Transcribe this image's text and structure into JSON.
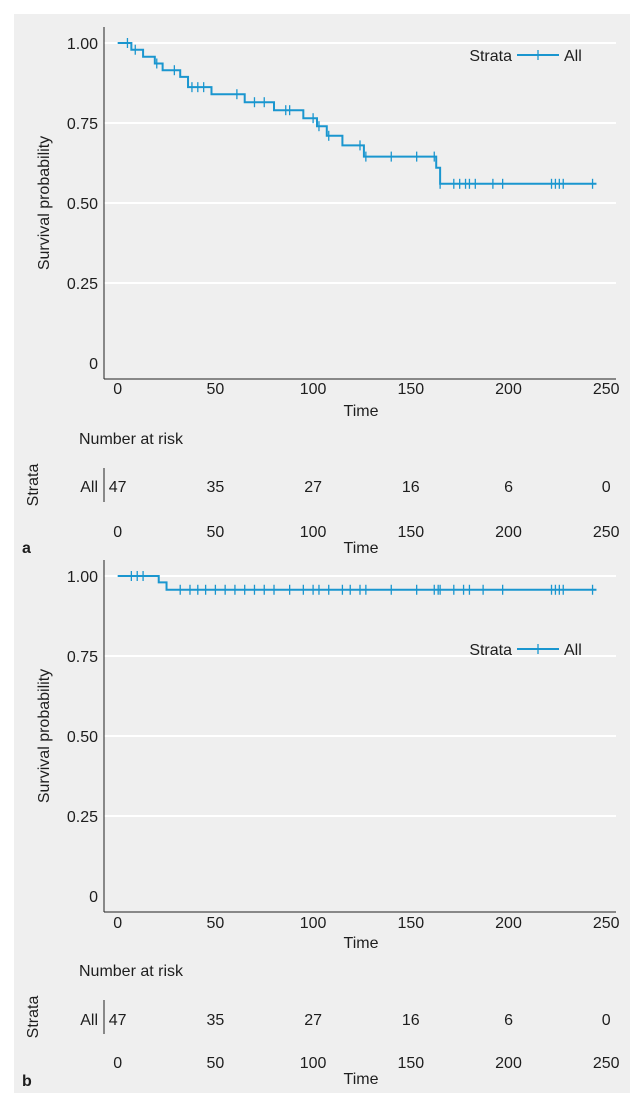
{
  "colors": {
    "series": "#1a96cf",
    "axis": "#222222",
    "grid": "#ffffff",
    "panel": "#efefef"
  },
  "chart_data": [
    {
      "panel_label": "a",
      "type": "line",
      "step": true,
      "ylabel": "Survival probability",
      "xlabel": "Time",
      "xlim": [
        -7,
        255
      ],
      "ylim": [
        -0.05,
        1.05
      ],
      "xticks": [
        "0",
        "50",
        "100",
        "150",
        "200",
        "250"
      ],
      "yticks": [
        "0",
        "0.25",
        "0.50",
        "0.75",
        "1.00"
      ],
      "grid": true,
      "legend": {
        "title": "Strata",
        "placement": "top-right",
        "entries": [
          "All"
        ]
      },
      "series": [
        {
          "name": "All",
          "steps": [
            [
              0,
              1.0
            ],
            [
              7,
              0.979
            ],
            [
              13,
              0.957
            ],
            [
              19,
              0.936
            ],
            [
              23,
              0.915
            ],
            [
              32,
              0.894
            ],
            [
              36,
              0.862
            ],
            [
              48,
              0.84
            ],
            [
              65,
              0.815
            ],
            [
              80,
              0.79
            ],
            [
              95,
              0.765
            ],
            [
              102,
              0.74
            ],
            [
              107,
              0.71
            ],
            [
              115,
              0.68
            ],
            [
              126,
              0.645
            ],
            [
              163,
              0.61
            ],
            [
              165,
              0.56
            ],
            [
              245,
              0.56
            ]
          ],
          "censored": [
            [
              5,
              1.0
            ],
            [
              9,
              0.979
            ],
            [
              20,
              0.936
            ],
            [
              29,
              0.915
            ],
            [
              38,
              0.862
            ],
            [
              41,
              0.862
            ],
            [
              44,
              0.862
            ],
            [
              61,
              0.84
            ],
            [
              70,
              0.815
            ],
            [
              75,
              0.815
            ],
            [
              86,
              0.79
            ],
            [
              88,
              0.79
            ],
            [
              100,
              0.765
            ],
            [
              103,
              0.74
            ],
            [
              108,
              0.71
            ],
            [
              124,
              0.68
            ],
            [
              127,
              0.645
            ],
            [
              140,
              0.645
            ],
            [
              153,
              0.645
            ],
            [
              162,
              0.645
            ],
            [
              165,
              0.56
            ],
            [
              172,
              0.56
            ],
            [
              175,
              0.56
            ],
            [
              178,
              0.56
            ],
            [
              180,
              0.56
            ],
            [
              183,
              0.56
            ],
            [
              192,
              0.56
            ],
            [
              197,
              0.56
            ],
            [
              222,
              0.56
            ],
            [
              224,
              0.56
            ],
            [
              226,
              0.56
            ],
            [
              228,
              0.56
            ],
            [
              243,
              0.56
            ]
          ]
        }
      ],
      "risk_table": {
        "title": "Number at risk",
        "strata_label": "Strata",
        "row_label": "All",
        "times": [
          0,
          50,
          100,
          150,
          200,
          250
        ],
        "counts": [
          "47",
          "35",
          "27",
          "16",
          "6",
          "0"
        ],
        "xlabel": "Time",
        "xticks": [
          "0",
          "50",
          "100",
          "150",
          "200",
          "250"
        ]
      }
    },
    {
      "panel_label": "b",
      "type": "line",
      "step": true,
      "ylabel": "Survival probability",
      "xlabel": "Time",
      "xlim": [
        -7,
        255
      ],
      "ylim": [
        -0.05,
        1.05
      ],
      "xticks": [
        "0",
        "50",
        "100",
        "150",
        "200",
        "250"
      ],
      "yticks": [
        "0",
        "0.25",
        "0.50",
        "0.75",
        "1.00"
      ],
      "grid": true,
      "legend": {
        "title": "Strata",
        "placement": "right",
        "entries": [
          "All"
        ]
      },
      "series": [
        {
          "name": "All",
          "steps": [
            [
              0,
              1.0
            ],
            [
              21,
              0.98
            ],
            [
              25,
              0.957
            ],
            [
              245,
              0.957
            ]
          ],
          "censored": [
            [
              7,
              1.0
            ],
            [
              10,
              1.0
            ],
            [
              13,
              1.0
            ],
            [
              32,
              0.957
            ],
            [
              37,
              0.957
            ],
            [
              41,
              0.957
            ],
            [
              45,
              0.957
            ],
            [
              50,
              0.957
            ],
            [
              55,
              0.957
            ],
            [
              60,
              0.957
            ],
            [
              65,
              0.957
            ],
            [
              70,
              0.957
            ],
            [
              75,
              0.957
            ],
            [
              80,
              0.957
            ],
            [
              88,
              0.957
            ],
            [
              95,
              0.957
            ],
            [
              100,
              0.957
            ],
            [
              103,
              0.957
            ],
            [
              108,
              0.957
            ],
            [
              115,
              0.957
            ],
            [
              119,
              0.957
            ],
            [
              124,
              0.957
            ],
            [
              127,
              0.957
            ],
            [
              140,
              0.957
            ],
            [
              153,
              0.957
            ],
            [
              162,
              0.957
            ],
            [
              164,
              0.957
            ],
            [
              165,
              0.957
            ],
            [
              172,
              0.957
            ],
            [
              177,
              0.957
            ],
            [
              180,
              0.957
            ],
            [
              187,
              0.957
            ],
            [
              197,
              0.957
            ],
            [
              222,
              0.957
            ],
            [
              224,
              0.957
            ],
            [
              226,
              0.957
            ],
            [
              228,
              0.957
            ],
            [
              243,
              0.957
            ]
          ]
        }
      ],
      "risk_table": {
        "title": "Number at risk",
        "strata_label": "Strata",
        "row_label": "All",
        "times": [
          0,
          50,
          100,
          150,
          200,
          250
        ],
        "counts": [
          "47",
          "35",
          "27",
          "16",
          "6",
          "0"
        ],
        "xlabel": "Time",
        "xticks": [
          "0",
          "50",
          "100",
          "150",
          "200",
          "250"
        ]
      }
    }
  ]
}
